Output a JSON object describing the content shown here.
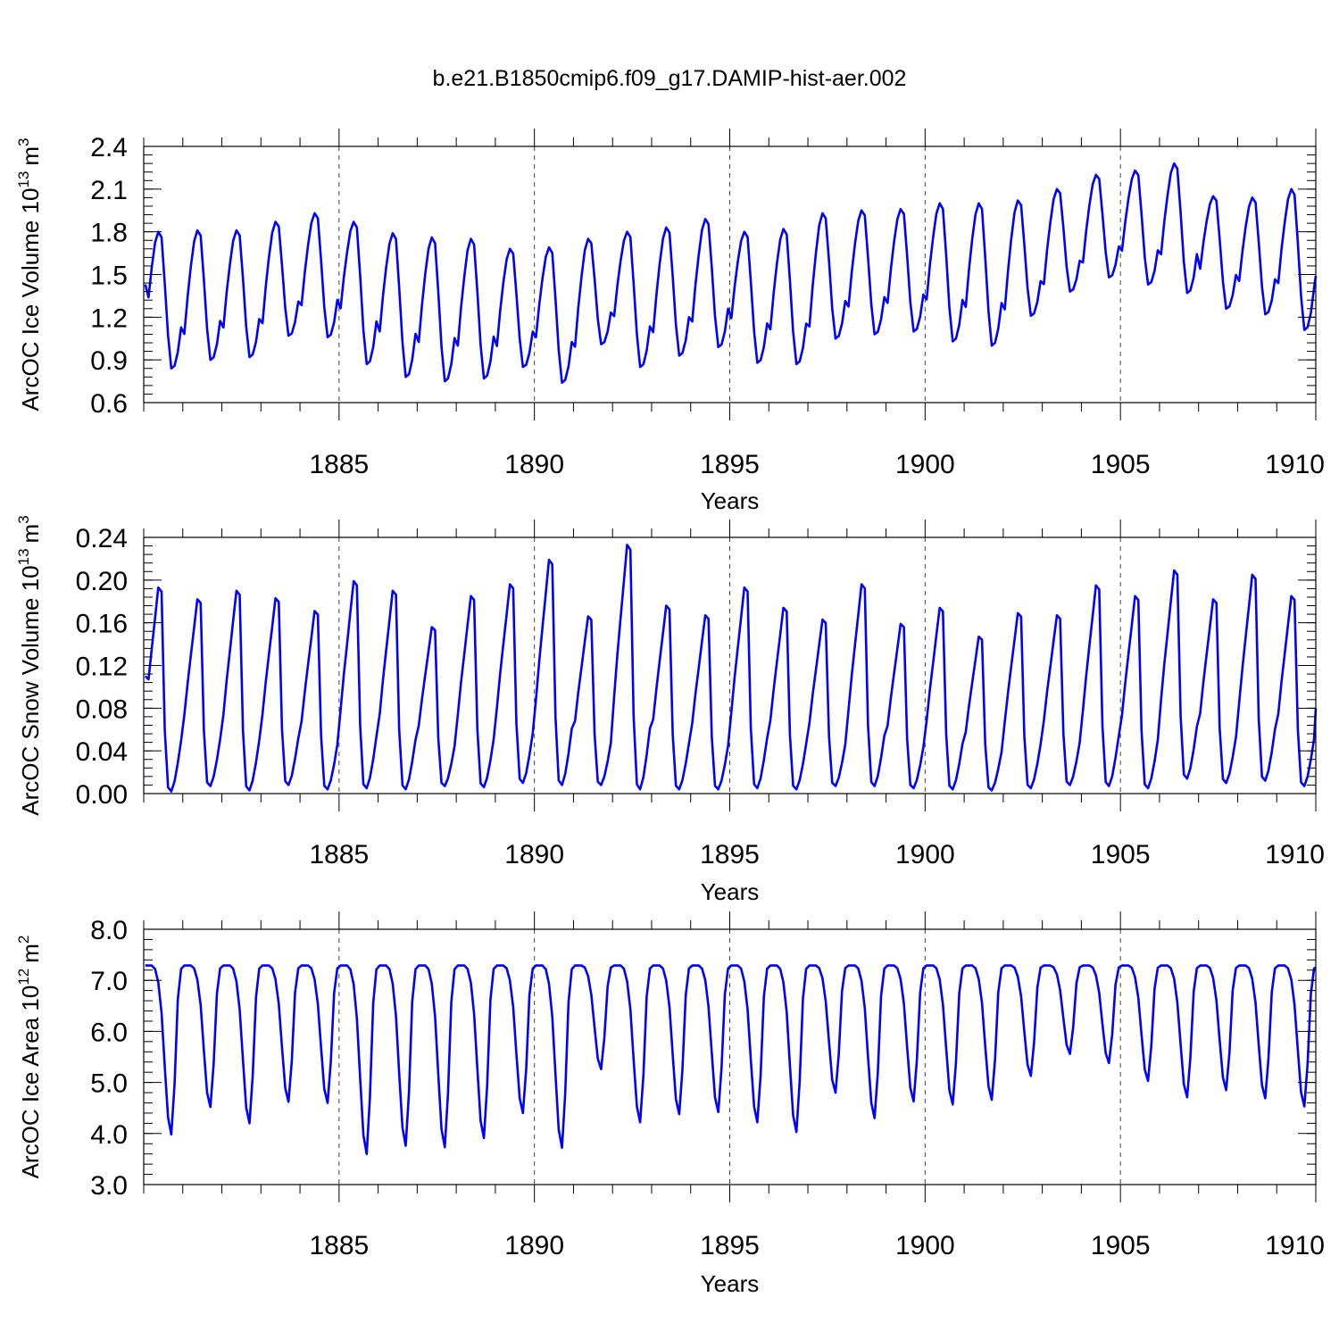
{
  "title": "b.e21.B1850cmip6.f09_g17.DAMIP-hist-aer.002",
  "colors": {
    "series": "#0000ff",
    "axis": "#000000",
    "grid": "#444444"
  },
  "chart_data": [
    {
      "type": "line",
      "ylabel_text": "ArcOC Ice Volume 10",
      "ylabel_exp": "13",
      "ylabel_unit": "m",
      "ylabel_unit_exp": "3",
      "xlabel": "Years",
      "xlim": [
        1880,
        1910
      ],
      "ylim": [
        0.6,
        2.4
      ],
      "yticks": [
        0.6,
        0.9,
        1.2,
        1.5,
        1.8,
        2.1,
        2.4
      ],
      "ytick_labels": [
        "0.6",
        "0.9",
        "1.2",
        "1.5",
        "1.8",
        "2.1",
        "2.4"
      ],
      "xticks": [
        1885,
        1890,
        1895,
        1900,
        1905,
        1910
      ],
      "xtick_labels": [
        "1885",
        "1890",
        "1895",
        "1900",
        "1905",
        "1910"
      ],
      "grid_x": [
        1885,
        1890,
        1895,
        1900,
        1905
      ],
      "series": [
        {
          "name": "ArcOC Ice Volume",
          "x_start": 1880.04,
          "x_step": 0.0833333,
          "annual_max": [
            1.8,
            1.81,
            1.81,
            1.87,
            1.93,
            1.87,
            1.79,
            1.76,
            1.75,
            1.68,
            1.69,
            1.75,
            1.8,
            1.83,
            1.89,
            1.8,
            1.82,
            1.93,
            1.95,
            1.96,
            2.0,
            2.0,
            2.02,
            2.1,
            2.2,
            2.23,
            2.28,
            2.05,
            2.04,
            2.1
          ],
          "annual_min": [
            0.84,
            0.9,
            0.92,
            1.07,
            1.06,
            0.87,
            0.78,
            0.75,
            0.77,
            0.85,
            0.74,
            1.01,
            0.85,
            0.93,
            0.99,
            0.88,
            0.87,
            1.05,
            1.08,
            1.1,
            1.03,
            1.0,
            1.21,
            1.38,
            1.48,
            1.43,
            1.37,
            1.26,
            1.22,
            1.11
          ],
          "start_value": 1.43,
          "end_value": 1.49
        }
      ]
    },
    {
      "type": "line",
      "ylabel_text": "ArcOC Snow Volume 10",
      "ylabel_exp": "13",
      "ylabel_unit": "m",
      "ylabel_unit_exp": "3",
      "xlabel": "Years",
      "xlim": [
        1880,
        1910
      ],
      "ylim": [
        0.0,
        0.24
      ],
      "yticks": [
        0.0,
        0.04,
        0.08,
        0.12,
        0.16,
        0.2,
        0.24
      ],
      "ytick_labels": [
        "0.00",
        "0.04",
        "0.08",
        "0.12",
        "0.16",
        "0.20",
        "0.24"
      ],
      "xticks": [
        1885,
        1890,
        1895,
        1900,
        1905,
        1910
      ],
      "xtick_labels": [
        "1885",
        "1890",
        "1895",
        "1900",
        "1905",
        "1910"
      ],
      "grid_x": [
        1885,
        1890,
        1895,
        1900,
        1905
      ],
      "series": [
        {
          "name": "ArcOC Snow Volume",
          "x_start": 1880.04,
          "x_step": 0.0833333,
          "annual_max": [
            0.193,
            0.182,
            0.19,
            0.183,
            0.171,
            0.199,
            0.19,
            0.156,
            0.185,
            0.196,
            0.219,
            0.166,
            0.233,
            0.176,
            0.167,
            0.193,
            0.174,
            0.163,
            0.196,
            0.159,
            0.174,
            0.147,
            0.169,
            0.167,
            0.195,
            0.185,
            0.209,
            0.182,
            0.205,
            0.185
          ],
          "annual_min": [
            0.002,
            0.007,
            0.003,
            0.008,
            0.004,
            0.005,
            0.004,
            0.007,
            0.006,
            0.01,
            0.008,
            0.008,
            0.004,
            0.004,
            0.004,
            0.005,
            0.004,
            0.007,
            0.007,
            0.005,
            0.004,
            0.003,
            0.005,
            0.008,
            0.007,
            0.005,
            0.014,
            0.01,
            0.012,
            0.007
          ],
          "start_value": 0.11,
          "end_value": 0.08
        }
      ]
    },
    {
      "type": "line",
      "ylabel_text": "ArcOC Ice Area 10",
      "ylabel_exp": "12",
      "ylabel_unit": "m",
      "ylabel_unit_exp": "2",
      "xlabel": "Years",
      "xlim": [
        1880,
        1910
      ],
      "ylim": [
        3.0,
        8.0
      ],
      "yticks": [
        3.0,
        4.0,
        5.0,
        6.0,
        7.0,
        8.0
      ],
      "ytick_labels": [
        "3.0",
        "4.0",
        "5.0",
        "6.0",
        "7.0",
        "8.0"
      ],
      "xticks": [
        1885,
        1890,
        1895,
        1900,
        1905,
        1910
      ],
      "xtick_labels": [
        "1885",
        "1890",
        "1895",
        "1900",
        "1905",
        "1910"
      ],
      "grid_x": [
        1885,
        1890,
        1895,
        1900,
        1905
      ],
      "series": [
        {
          "name": "ArcOC Ice Area",
          "x_start": 1880.04,
          "x_step": 0.0833333,
          "annual_max": [
            7.29,
            7.29,
            7.29,
            7.29,
            7.29,
            7.29,
            7.29,
            7.29,
            7.29,
            7.29,
            7.29,
            7.29,
            7.29,
            7.29,
            7.29,
            7.29,
            7.29,
            7.29,
            7.29,
            7.29,
            7.29,
            7.29,
            7.29,
            7.29,
            7.29,
            7.29,
            7.29,
            7.29,
            7.29,
            7.29
          ],
          "annual_min": [
            3.98,
            4.52,
            4.2,
            4.62,
            4.6,
            3.6,
            3.76,
            3.73,
            3.91,
            4.4,
            3.72,
            5.26,
            4.22,
            4.38,
            4.42,
            4.22,
            4.03,
            4.8,
            4.3,
            4.63,
            4.57,
            4.66,
            5.13,
            5.56,
            5.38,
            5.03,
            4.71,
            4.85,
            4.69,
            4.53
          ],
          "start_value": 7.29,
          "end_value": 7.25
        }
      ]
    }
  ]
}
